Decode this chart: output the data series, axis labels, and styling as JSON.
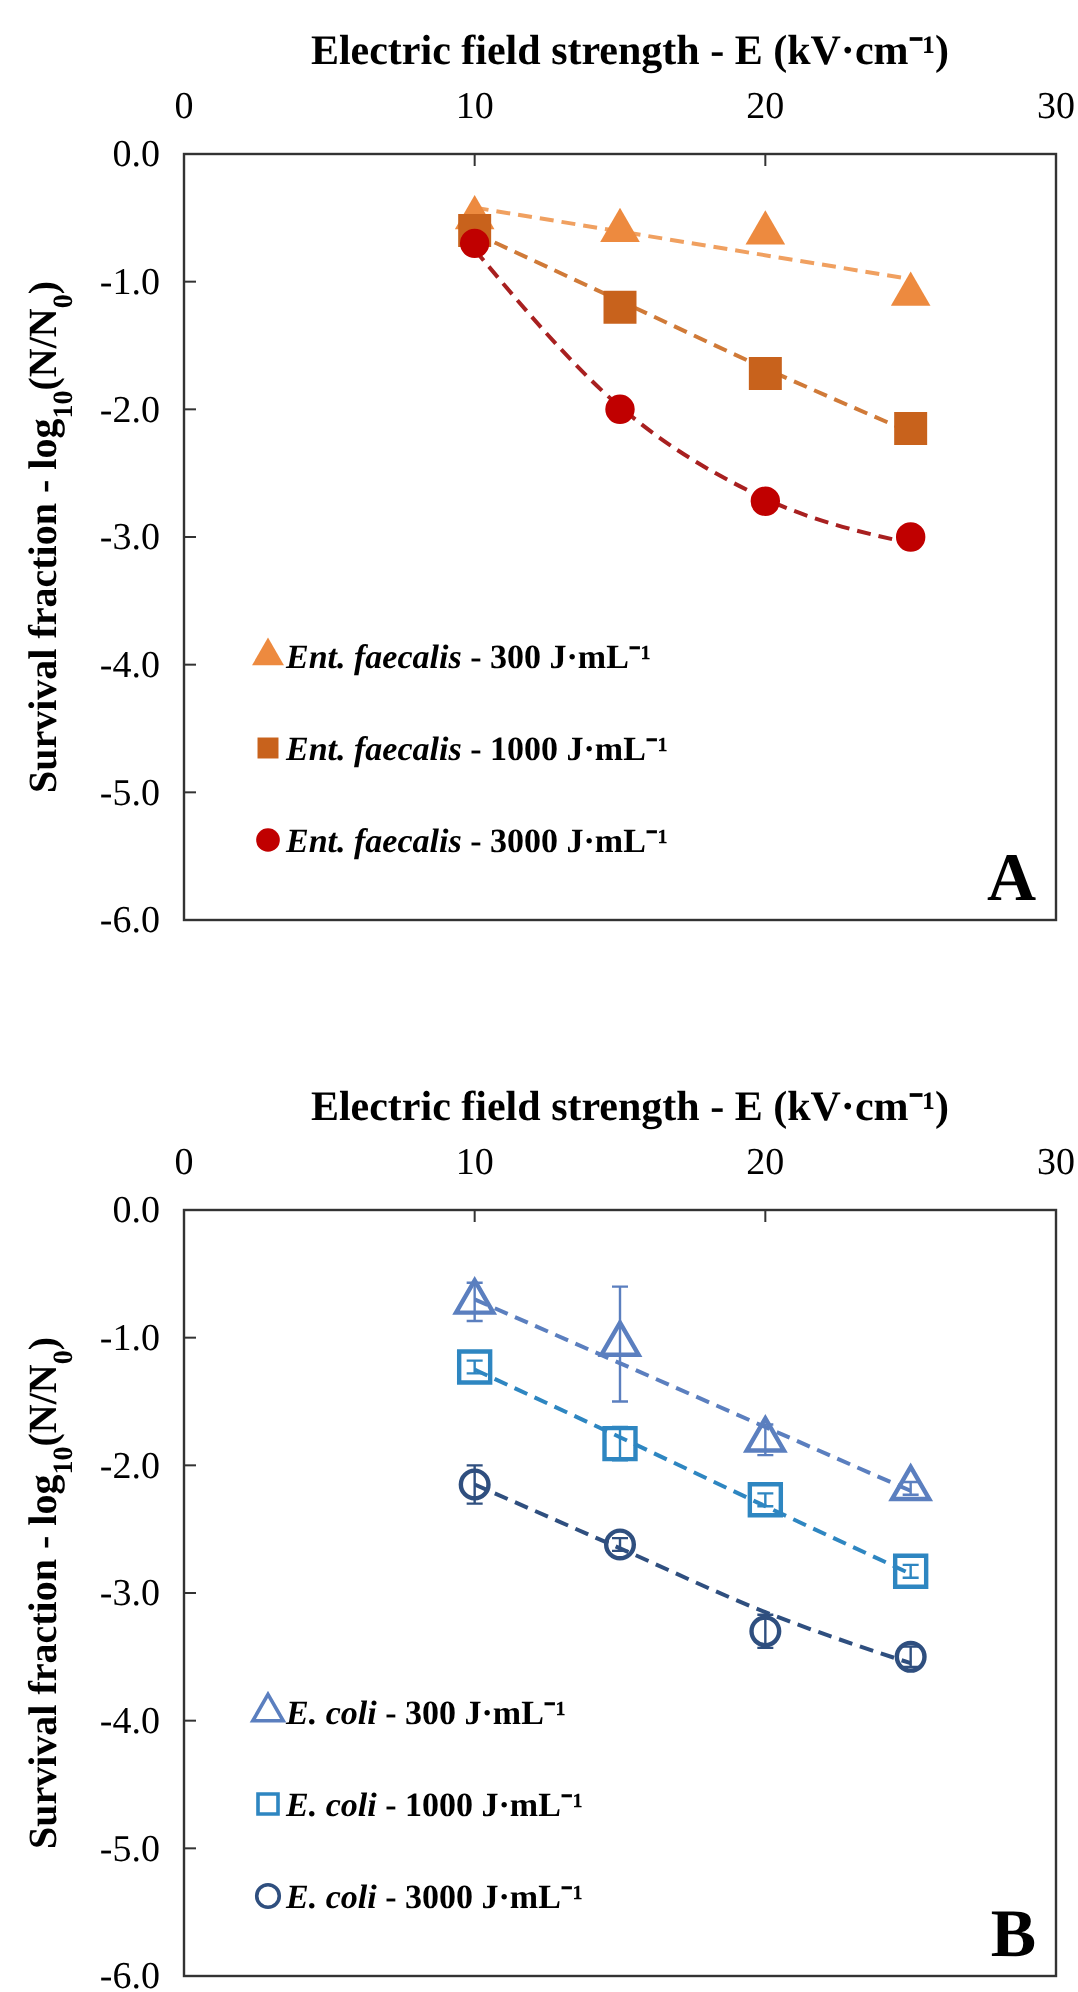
{
  "chart_data": [
    {
      "type": "scatter",
      "xlabel": "Electric field strength - E (kV·cm⁻¹)",
      "ylabel": "Survival fraction - log$_{10}$(N/N$_{0}$)",
      "xlim": [
        0,
        30
      ],
      "xticks": [
        0,
        10,
        20,
        30
      ],
      "ylim": [
        -6,
        0
      ],
      "yticks": [
        {
          "value": 0,
          "label": "0.0"
        },
        {
          "value": -1,
          "label": "-1.0"
        },
        {
          "value": -2,
          "label": "-2.0"
        },
        {
          "value": -3,
          "label": "-3.0"
        },
        {
          "value": -4,
          "label": "-4.0"
        },
        {
          "value": -5,
          "label": "-5.0"
        },
        {
          "value": -6,
          "label": "-6.0"
        }
      ],
      "legend": "bottom left",
      "grid": false,
      "annotations": [
        "A"
      ],
      "series": [
        {
          "type": "line",
          "color": "#f0a060",
          "x": [
            10,
            25
          ],
          "values": [
            -0.42,
            -0.98
          ],
          "line_style": "dashed"
        },
        {
          "type": "line",
          "color": "#d07a38",
          "x": [
            10,
            15,
            20,
            25
          ],
          "values": [
            -0.62,
            -1.15,
            -1.68,
            -2.18
          ],
          "line_style": "dashed"
        },
        {
          "type": "line",
          "color": "#a82020",
          "x": [
            10,
            15,
            20,
            25
          ],
          "values": [
            -0.75,
            -1.98,
            -2.7,
            -3.05
          ],
          "line_style": "dashed"
        },
        {
          "name": "Ent. faecalis - 300 J·mL⁻¹",
          "color": "#ed8a3f",
          "x": [
            10,
            15,
            20,
            25
          ],
          "values": [
            -0.5,
            -0.6,
            -0.62,
            -1.1
          ],
          "marker": "triangle"
        },
        {
          "name": "Ent. faecalis - 1000 J·mL⁻¹",
          "color": "#c8621c",
          "x": [
            10,
            15,
            20,
            25
          ],
          "values": [
            -0.6,
            -1.2,
            -1.72,
            -2.15
          ],
          "marker": "square"
        },
        {
          "name": "Ent. faecalis - 3000 J·mL⁻¹",
          "color": "#c00000",
          "x": [
            10,
            15,
            20,
            25
          ],
          "values": [
            -0.7,
            -2.0,
            -2.72,
            -3.0
          ],
          "marker": "circle"
        }
      ]
    },
    {
      "type": "scatter",
      "xlabel": "Electric field strength - E (kV·cm⁻¹)",
      "ylabel": "Survival fraction - log$_{10}$(N/N$_{0}$)",
      "xlim": [
        0,
        30
      ],
      "xticks": [
        0,
        10,
        20,
        30
      ],
      "ylim": [
        -6,
        0
      ],
      "yticks": [
        {
          "value": 0,
          "label": "0.0"
        },
        {
          "value": -1,
          "label": "-1.0"
        },
        {
          "value": -2,
          "label": "-2.0"
        },
        {
          "value": -3,
          "label": "-3.0"
        },
        {
          "value": -4,
          "label": "-4.0"
        },
        {
          "value": -5,
          "label": "-5.0"
        },
        {
          "value": -6,
          "label": "-6.0"
        }
      ],
      "legend": "bottom left",
      "grid": false,
      "annotations": [
        "B"
      ],
      "series": [
        {
          "type": "line",
          "color": "#5b7fbf",
          "x": [
            10,
            25
          ],
          "values": [
            -0.7,
            -2.2
          ],
          "line_style": "dashed"
        },
        {
          "type": "line",
          "color": "#2e86c1",
          "x": [
            10,
            15,
            20,
            25
          ],
          "values": [
            -1.25,
            -1.78,
            -2.32,
            -2.85
          ],
          "line_style": "dashed"
        },
        {
          "type": "line",
          "color": "#2f4f7f",
          "x": [
            10,
            15,
            20,
            25
          ],
          "values": [
            -2.15,
            -2.65,
            -3.15,
            -3.55
          ],
          "line_style": "dashed"
        },
        {
          "name": "E. coli - 300 J·mL⁻¹",
          "color": "#5b7fbf",
          "x": [
            10,
            15,
            20,
            25
          ],
          "values": [
            -0.72,
            -1.05,
            -1.8,
            -2.18
          ],
          "errors": [
            0.15,
            0.45,
            0.12,
            0.05
          ],
          "marker": "triangle"
        },
        {
          "name": "E. coli - 1000 J·mL⁻¹",
          "color": "#2e86c1",
          "x": [
            10,
            15,
            20,
            25
          ],
          "values": [
            -1.23,
            -1.83,
            -2.27,
            -2.83
          ],
          "errors": [
            0.05,
            0.13,
            0.05,
            0.05
          ],
          "marker": "square"
        },
        {
          "name": "E. coli - 3000 J·mL⁻¹",
          "color": "#2f4f7f",
          "x": [
            10,
            15,
            20,
            25
          ],
          "values": [
            -2.15,
            -2.62,
            -3.3,
            -3.5
          ],
          "errors": [
            0.15,
            0.05,
            0.13,
            0.08
          ],
          "marker": "circle"
        }
      ]
    }
  ]
}
